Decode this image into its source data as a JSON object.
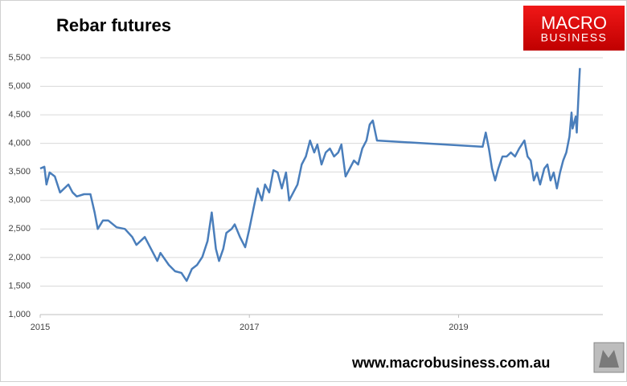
{
  "chart_data": {
    "type": "line",
    "title": "Rebar futures",
    "logo": [
      "MACRO",
      "BUSINESS"
    ],
    "source": "www.macrobusiness.com.au",
    "xlim": [
      2015,
      2020.38
    ],
    "xticks": [
      2015,
      2017,
      2019
    ],
    "ylim": [
      1000,
      5500
    ],
    "yticks": [
      {
        "value": 1000,
        "label": "1,000"
      },
      {
        "value": 1500,
        "label": "1,500"
      },
      {
        "value": 2000,
        "label": "2,000"
      },
      {
        "value": 2500,
        "label": "2,500"
      },
      {
        "value": 3000,
        "label": "3,000"
      },
      {
        "value": 3500,
        "label": "3,500"
      },
      {
        "value": 4000,
        "label": "4,000"
      },
      {
        "value": 4500,
        "label": "4,500"
      },
      {
        "value": 5000,
        "label": "5,000"
      },
      {
        "value": 5500,
        "label": "5,500"
      }
    ],
    "grid": true,
    "x": [
      2015.0,
      2015.04,
      2015.06,
      2015.09,
      2015.14,
      2015.19,
      2015.27,
      2015.31,
      2015.35,
      2015.42,
      2015.48,
      2015.52,
      2015.55,
      2015.6,
      2015.65,
      2015.73,
      2015.81,
      2015.88,
      2015.92,
      2016.0,
      2016.08,
      2016.12,
      2016.15,
      2016.23,
      2016.29,
      2016.35,
      2016.4,
      2016.45,
      2016.5,
      2016.55,
      2016.6,
      2016.64,
      2016.68,
      2016.71,
      2016.75,
      2016.78,
      2016.83,
      2016.86,
      2016.91,
      2016.96,
      2017.0,
      2017.04,
      2017.08,
      2017.12,
      2017.15,
      2017.19,
      2017.23,
      2017.27,
      2017.31,
      2017.35,
      2017.38,
      2017.42,
      2017.46,
      2017.5,
      2017.54,
      2017.58,
      2017.62,
      2017.65,
      2017.69,
      2017.73,
      2017.77,
      2017.81,
      2017.85,
      2017.88,
      2017.92,
      2017.96,
      2018.0,
      2018.04,
      2018.08,
      2018.12,
      2018.15,
      2018.18,
      2018.22,
      2019.23,
      2019.26,
      2019.29,
      2019.32,
      2019.35,
      2019.38,
      2019.42,
      2019.46,
      2019.5,
      2019.54,
      2019.58,
      2019.63,
      2019.66,
      2019.69,
      2019.72,
      2019.75,
      2019.78,
      2019.82,
      2019.85,
      2019.88,
      2019.91,
      2019.94,
      2019.97,
      2020.0,
      2020.03,
      2020.06,
      2020.08,
      2020.09,
      2020.12,
      2020.13,
      2020.15,
      2020.16
    ],
    "series": [
      {
        "color": "#4a7ebb",
        "values": [
          3560,
          3590,
          3280,
          3490,
          3420,
          3140,
          3280,
          3140,
          3070,
          3110,
          3110,
          2790,
          2500,
          2650,
          2650,
          2530,
          2500,
          2360,
          2220,
          2360,
          2080,
          1940,
          2080,
          1870,
          1760,
          1730,
          1590,
          1800,
          1870,
          2010,
          2290,
          2790,
          2150,
          1940,
          2150,
          2430,
          2500,
          2580,
          2360,
          2180,
          2500,
          2860,
          3210,
          3000,
          3280,
          3140,
          3530,
          3490,
          3210,
          3490,
          3000,
          3140,
          3280,
          3630,
          3770,
          4050,
          3840,
          3980,
          3630,
          3840,
          3910,
          3770,
          3840,
          3980,
          3420,
          3560,
          3700,
          3630,
          3910,
          4050,
          4330,
          4400,
          4050,
          3940,
          4190,
          3910,
          3560,
          3350,
          3560,
          3770,
          3770,
          3840,
          3770,
          3910,
          4050,
          3770,
          3700,
          3350,
          3490,
          3280,
          3560,
          3630,
          3350,
          3490,
          3210,
          3490,
          3700,
          3840,
          4120,
          4540,
          4260,
          4470,
          4190,
          4970,
          5320
        ]
      }
    ]
  }
}
